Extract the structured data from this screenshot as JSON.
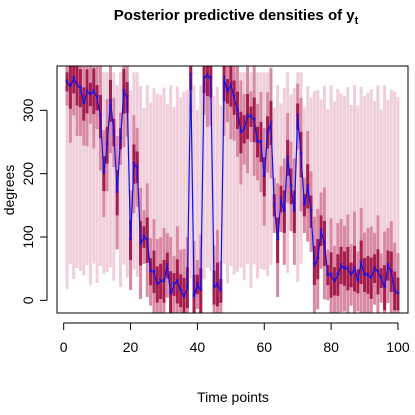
{
  "chart_data": {
    "type": "line",
    "title": "Posterior predictive densities of y",
    "title_subscript": "t",
    "xlabel": "Time points",
    "ylabel": "degrees",
    "xlim": [
      -2,
      103
    ],
    "ylim": [
      -20,
      370
    ],
    "x_ticks": [
      0,
      20,
      40,
      60,
      80,
      100
    ],
    "y_ticks": [
      0,
      100,
      200,
      300
    ],
    "grid": false,
    "colors": {
      "line": "#1010f0",
      "band_light": "#f0cfdc",
      "band_mid": "#d88aa4",
      "band_dark": "#a51c4e"
    },
    "series": [
      {
        "x": [
          1,
          2,
          3,
          4,
          5,
          6,
          7,
          8,
          9,
          10,
          11,
          12,
          13,
          14,
          15,
          16,
          17,
          18,
          19,
          20,
          21,
          22,
          23,
          24,
          25,
          26,
          27,
          28,
          29,
          30,
          31,
          32,
          33,
          34,
          35,
          36,
          37,
          38,
          39,
          40,
          41,
          42,
          43,
          44,
          45,
          46,
          47,
          48,
          49,
          50,
          51,
          52,
          53,
          54,
          55,
          56,
          57,
          58,
          59,
          60,
          61,
          62,
          63,
          64,
          65,
          66,
          67,
          68,
          69,
          70,
          71,
          72,
          73,
          74,
          75,
          76,
          77,
          78,
          79,
          80,
          81,
          82,
          83,
          84,
          85,
          86,
          87,
          88,
          89,
          90,
          91,
          92,
          93,
          94,
          95,
          96,
          97,
          98,
          99,
          100
        ],
        "values": [
          345,
          338,
          350,
          340,
          335,
          310,
          330,
          325,
          330,
          320,
          290,
          200,
          245,
          315,
          265,
          170,
          255,
          330,
          320,
          95,
          215,
          210,
          90,
          100,
          95,
          45,
          45,
          25,
          30,
          30,
          55,
          10,
          25,
          30,
          15,
          5,
          20,
          355,
          5,
          25,
          15,
          350,
          355,
          350,
          20,
          25,
          15,
          350,
          330,
          340,
          320,
          300,
          265,
          270,
          290,
          290,
          285,
          250,
          250,
          195,
          265,
          280,
          150,
          95,
          160,
          140,
          225,
          180,
          140,
          290,
          230,
          150,
          180,
          140,
          55,
          65,
          110,
          90,
          40,
          40,
          30,
          40,
          55,
          50,
          50,
          40,
          50,
          30,
          60,
          40,
          40,
          35,
          50,
          45,
          35,
          20,
          55,
          45,
          15,
          10
        ]
      }
    ]
  }
}
